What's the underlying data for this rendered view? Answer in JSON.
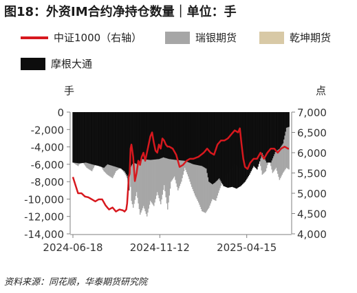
{
  "chart_data": {
    "type": "bar+line",
    "title": "图18：外资IM合约净持仓数量｜单位：手",
    "legend": [
      {
        "name": "中证1000（右轴）",
        "color": "#d7181e",
        "kind": "line"
      },
      {
        "name": "瑞银期货",
        "color": "#a6a6a6",
        "kind": "box"
      },
      {
        "name": "乾坤期货",
        "color": "#d8c9a6",
        "kind": "box"
      },
      {
        "name": "摩根大通",
        "color": "#0d0d0d",
        "kind": "box"
      }
    ],
    "left_axis_unit": "手",
    "right_axis_unit": "点",
    "left_ylim": [
      -14000,
      0
    ],
    "right_ylim": [
      4000,
      7000
    ],
    "left_ticks": [
      "0",
      "-2,000",
      "-4,000",
      "-6,000",
      "-8,000",
      "-10,000",
      "-12,000",
      "-14,000"
    ],
    "right_ticks": [
      "7,000",
      "6,500",
      "6,000",
      "5,500",
      "5,000",
      "4,500",
      "4,000"
    ],
    "x_ticks": [
      "2024-06-18",
      "2024-11-12",
      "2025-04-15"
    ],
    "x_tick_index": [
      0,
      101,
      202
    ],
    "n_points": 252,
    "jpm_keys": [
      [
        0,
        -5800
      ],
      [
        8,
        -5900
      ],
      [
        15,
        -5800
      ],
      [
        22,
        -6000
      ],
      [
        30,
        -6200
      ],
      [
        36,
        -6400
      ],
      [
        40,
        -6000
      ],
      [
        50,
        -6300
      ],
      [
        56,
        -6500
      ],
      [
        60,
        -6800
      ],
      [
        63,
        -7300
      ],
      [
        64,
        -8500
      ],
      [
        65,
        -9000
      ],
      [
        66,
        -7200
      ],
      [
        67,
        -6300
      ],
      [
        70,
        -5800
      ],
      [
        75,
        -6000
      ],
      [
        80,
        -5400
      ],
      [
        90,
        -5500
      ],
      [
        100,
        -5400
      ],
      [
        105,
        -5200
      ],
      [
        112,
        -5400
      ],
      [
        120,
        -5500
      ],
      [
        130,
        -5600
      ],
      [
        135,
        -5800
      ],
      [
        140,
        -6000
      ],
      [
        150,
        -6200
      ],
      [
        155,
        -6500
      ],
      [
        158,
        -8000
      ],
      [
        162,
        -8300
      ],
      [
        165,
        -8100
      ],
      [
        170,
        -7600
      ],
      [
        175,
        -8500
      ],
      [
        180,
        -8700
      ],
      [
        185,
        -8600
      ],
      [
        190,
        -8800
      ],
      [
        195,
        -8500
      ],
      [
        200,
        -8000
      ],
      [
        205,
        -7200
      ],
      [
        210,
        -6200
      ],
      [
        214,
        -6600
      ],
      [
        220,
        -4700
      ],
      [
        225,
        -5800
      ],
      [
        230,
        -5800
      ],
      [
        235,
        -4600
      ],
      [
        240,
        -4200
      ],
      [
        244,
        -3600
      ],
      [
        248,
        -1800
      ],
      [
        251,
        -1700
      ]
    ],
    "ubs_keys": [
      [
        0,
        -5800
      ],
      [
        6,
        -6200
      ],
      [
        10,
        -5600
      ],
      [
        16,
        -6400
      ],
      [
        22,
        -6800
      ],
      [
        26,
        -6000
      ],
      [
        30,
        -5800
      ],
      [
        36,
        -6800
      ],
      [
        40,
        -7200
      ],
      [
        46,
        -7600
      ],
      [
        50,
        -6800
      ],
      [
        55,
        -6400
      ],
      [
        60,
        -7000
      ],
      [
        64,
        -7800
      ],
      [
        65,
        -9000
      ],
      [
        66,
        -7000
      ],
      [
        68,
        -10200
      ],
      [
        70,
        -11000
      ],
      [
        74,
        -9200
      ],
      [
        78,
        -11800
      ],
      [
        82,
        -10800
      ],
      [
        86,
        -12000
      ],
      [
        90,
        -10200
      ],
      [
        94,
        -10800
      ],
      [
        98,
        -9200
      ],
      [
        102,
        -10600
      ],
      [
        106,
        -8400
      ],
      [
        110,
        -11200
      ],
      [
        114,
        -8000
      ],
      [
        118,
        -7400
      ],
      [
        122,
        -9000
      ],
      [
        126,
        -8000
      ],
      [
        130,
        -6400
      ],
      [
        134,
        -7400
      ],
      [
        138,
        -8600
      ],
      [
        142,
        -9600
      ],
      [
        146,
        -10400
      ],
      [
        150,
        -11400
      ],
      [
        154,
        -11600
      ],
      [
        158,
        -11000
      ],
      [
        162,
        -10000
      ],
      [
        166,
        -10200
      ],
      [
        170,
        -9000
      ],
      [
        176,
        -7400
      ],
      [
        182,
        -6800
      ],
      [
        188,
        -6000
      ],
      [
        194,
        -6400
      ],
      [
        200,
        -5800
      ],
      [
        204,
        -6400
      ],
      [
        208,
        -5400
      ],
      [
        212,
        -6200
      ],
      [
        216,
        -5200
      ],
      [
        220,
        -7200
      ],
      [
        224,
        -6800
      ],
      [
        228,
        -5400
      ],
      [
        232,
        -7000
      ],
      [
        236,
        -6400
      ],
      [
        240,
        -7800
      ],
      [
        244,
        -7000
      ],
      [
        248,
        -6400
      ],
      [
        251,
        -6600
      ]
    ],
    "csi_keys": [
      [
        0,
        5400
      ],
      [
        3,
        5200
      ],
      [
        6,
        5000
      ],
      [
        10,
        5000
      ],
      [
        14,
        4920
      ],
      [
        18,
        4900
      ],
      [
        22,
        4850
      ],
      [
        26,
        4800
      ],
      [
        30,
        4850
      ],
      [
        34,
        4850
      ],
      [
        38,
        4700
      ],
      [
        42,
        4600
      ],
      [
        46,
        4650
      ],
      [
        50,
        4550
      ],
      [
        54,
        4600
      ],
      [
        58,
        4580
      ],
      [
        60,
        4550
      ],
      [
        62,
        4600
      ],
      [
        63,
        4750
      ],
      [
        65,
        5400
      ],
      [
        66,
        5500
      ],
      [
        67,
        6100
      ],
      [
        68,
        6200
      ],
      [
        70,
        5900
      ],
      [
        72,
        5300
      ],
      [
        74,
        5500
      ],
      [
        76,
        5800
      ],
      [
        78,
        5700
      ],
      [
        80,
        5900
      ],
      [
        82,
        6000
      ],
      [
        84,
        5800
      ],
      [
        86,
        6000
      ],
      [
        88,
        6200
      ],
      [
        90,
        6400
      ],
      [
        92,
        6500
      ],
      [
        94,
        6250
      ],
      [
        96,
        6050
      ],
      [
        98,
        6000
      ],
      [
        100,
        6200
      ],
      [
        102,
        6100
      ],
      [
        104,
        6350
      ],
      [
        106,
        6300
      ],
      [
        108,
        6200
      ],
      [
        110,
        6150
      ],
      [
        112,
        6150
      ],
      [
        116,
        6100
      ],
      [
        120,
        5950
      ],
      [
        124,
        5650
      ],
      [
        128,
        5700
      ],
      [
        132,
        5800
      ],
      [
        136,
        5850
      ],
      [
        140,
        5850
      ],
      [
        146,
        5900
      ],
      [
        152,
        6000
      ],
      [
        156,
        6100
      ],
      [
        160,
        6000
      ],
      [
        164,
        5950
      ],
      [
        168,
        6200
      ],
      [
        172,
        6300
      ],
      [
        176,
        6300
      ],
      [
        180,
        6350
      ],
      [
        184,
        6450
      ],
      [
        188,
        6550
      ],
      [
        192,
        6500
      ],
      [
        194,
        6600
      ],
      [
        196,
        6200
      ],
      [
        198,
        5850
      ],
      [
        200,
        5650
      ],
      [
        203,
        5600
      ],
      [
        206,
        5750
      ],
      [
        210,
        5850
      ],
      [
        214,
        5850
      ],
      [
        218,
        6000
      ],
      [
        222,
        5850
      ],
      [
        226,
        6000
      ],
      [
        230,
        6100
      ],
      [
        234,
        6100
      ],
      [
        238,
        6000
      ],
      [
        242,
        6100
      ],
      [
        246,
        6150
      ],
      [
        250,
        6100
      ],
      [
        251,
        6100
      ]
    ]
  },
  "source": "资料来源：同花顺，华泰期货研究院"
}
